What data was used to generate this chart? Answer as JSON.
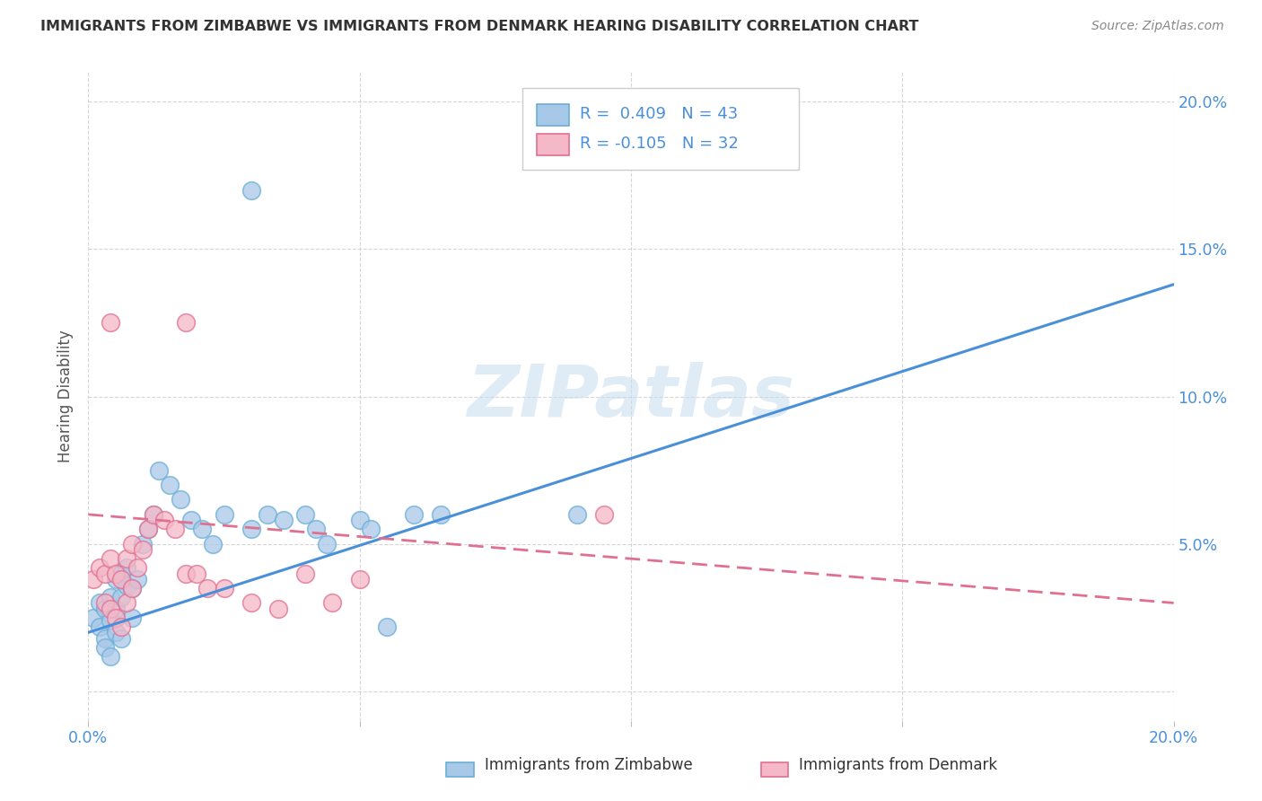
{
  "title": "IMMIGRANTS FROM ZIMBABWE VS IMMIGRANTS FROM DENMARK HEARING DISABILITY CORRELATION CHART",
  "source": "Source: ZipAtlas.com",
  "ylabel": "Hearing Disability",
  "xlim": [
    0.0,
    0.2
  ],
  "ylim": [
    -0.01,
    0.21
  ],
  "legend_zim": "R =  0.409   N = 43",
  "legend_den": "R = -0.105   N = 32",
  "color_zimbabwe_fill": "#a8c8e8",
  "color_zimbabwe_edge": "#6baed6",
  "color_denmark_fill": "#f4b8c8",
  "color_denmark_edge": "#e07090",
  "color_line_zimbabwe": "#4a90d9",
  "color_line_denmark": "#e07090",
  "watermark_text": "ZIPatlas",
  "zim_line_x": [
    0.0,
    0.2
  ],
  "zim_line_y": [
    0.02,
    0.138
  ],
  "den_line_x": [
    0.0,
    0.2
  ],
  "den_line_y": [
    0.06,
    0.03
  ],
  "zimbabwe_x": [
    0.001,
    0.002,
    0.002,
    0.003,
    0.003,
    0.003,
    0.004,
    0.004,
    0.004,
    0.005,
    0.005,
    0.005,
    0.006,
    0.006,
    0.006,
    0.007,
    0.007,
    0.008,
    0.008,
    0.009,
    0.01,
    0.011,
    0.012,
    0.013,
    0.015,
    0.017,
    0.019,
    0.021,
    0.023,
    0.025,
    0.03,
    0.033,
    0.036,
    0.04,
    0.042,
    0.044,
    0.05,
    0.052,
    0.055,
    0.06,
    0.065,
    0.09,
    0.03
  ],
  "zimbabwe_y": [
    0.025,
    0.03,
    0.022,
    0.028,
    0.018,
    0.015,
    0.032,
    0.024,
    0.012,
    0.038,
    0.028,
    0.02,
    0.04,
    0.032,
    0.018,
    0.042,
    0.036,
    0.035,
    0.025,
    0.038,
    0.05,
    0.055,
    0.06,
    0.075,
    0.07,
    0.065,
    0.058,
    0.055,
    0.05,
    0.06,
    0.055,
    0.06,
    0.058,
    0.06,
    0.055,
    0.05,
    0.058,
    0.055,
    0.022,
    0.06,
    0.06,
    0.06,
    0.17
  ],
  "denmark_x": [
    0.001,
    0.002,
    0.003,
    0.003,
    0.004,
    0.004,
    0.005,
    0.005,
    0.006,
    0.006,
    0.007,
    0.007,
    0.008,
    0.008,
    0.009,
    0.01,
    0.011,
    0.012,
    0.014,
    0.016,
    0.018,
    0.02,
    0.022,
    0.025,
    0.03,
    0.035,
    0.04,
    0.045,
    0.05,
    0.095,
    0.018,
    0.004
  ],
  "denmark_y": [
    0.038,
    0.042,
    0.04,
    0.03,
    0.045,
    0.028,
    0.04,
    0.025,
    0.038,
    0.022,
    0.045,
    0.03,
    0.05,
    0.035,
    0.042,
    0.048,
    0.055,
    0.06,
    0.058,
    0.055,
    0.04,
    0.04,
    0.035,
    0.035,
    0.03,
    0.028,
    0.04,
    0.03,
    0.038,
    0.06,
    0.125,
    0.125
  ]
}
